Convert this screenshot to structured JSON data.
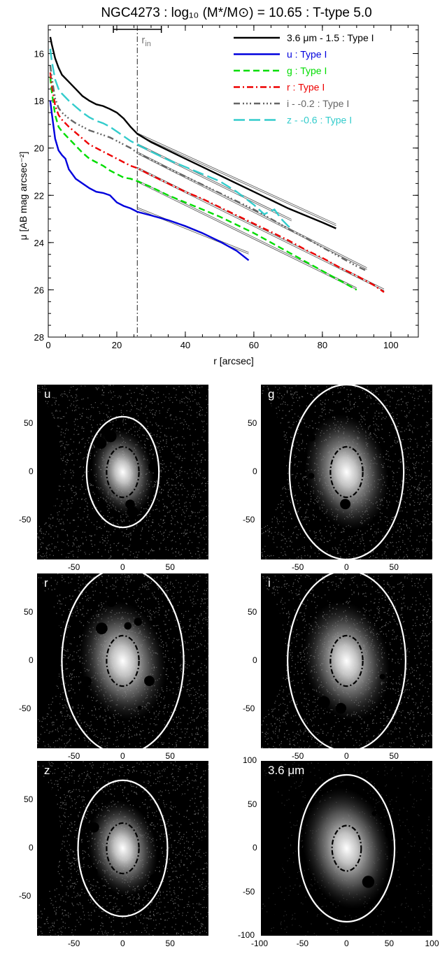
{
  "chart_data": [
    {
      "type": "line",
      "title": "NGC4273 : log₁₀ (M*/M⊙) = 10.65 : T-type 5.0",
      "xlabel": "r [arcsec]",
      "ylabel": "μ [AB mag arcsec⁻²]",
      "xlim": [
        0,
        108
      ],
      "ylim": [
        28,
        14.8
      ],
      "y_inverted": true,
      "xticks": [
        "0",
        "20",
        "40",
        "60",
        "80",
        "100"
      ],
      "yticks": [
        "16",
        "18",
        "20",
        "22",
        "24",
        "26",
        "28"
      ],
      "r_in": 26,
      "r_in_label": "r",
      "r_in_sub": "in",
      "r_in_range": [
        19,
        33
      ],
      "legend_position": "top-right",
      "series": [
        {
          "name": "3.6 μm - 1.5 : Type I",
          "color": "#000000",
          "dash": "",
          "x": [
            0.6,
            1,
            2,
            3,
            4,
            6,
            8,
            10,
            12,
            14,
            16,
            18,
            20,
            22,
            24,
            26,
            30,
            35,
            40,
            45,
            50,
            55,
            60,
            65,
            70,
            75,
            80,
            84
          ],
          "y": [
            15.3,
            15.6,
            16.2,
            16.6,
            16.9,
            17.2,
            17.5,
            17.8,
            18.0,
            18.15,
            18.22,
            18.35,
            18.5,
            18.75,
            19.1,
            19.4,
            19.75,
            20.1,
            20.45,
            20.8,
            21.15,
            21.5,
            21.85,
            22.2,
            22.55,
            22.85,
            23.15,
            23.4
          ],
          "fit": [
            [
              26,
              19.4
            ],
            [
              84,
              23.25
            ]
          ]
        },
        {
          "name": "u : Type I",
          "color": "#0000dd",
          "dash": "",
          "x": [
            0.6,
            1,
            2,
            3,
            4,
            5,
            6,
            8,
            10,
            12,
            14,
            16,
            18,
            20,
            22,
            24,
            26,
            30,
            35,
            40,
            45,
            50,
            55,
            58.5
          ],
          "y": [
            18.0,
            18.5,
            19.6,
            20.1,
            20.3,
            20.45,
            20.9,
            21.3,
            21.5,
            21.7,
            21.85,
            21.9,
            22.0,
            22.3,
            22.45,
            22.55,
            22.7,
            22.85,
            23.05,
            23.3,
            23.6,
            23.95,
            24.35,
            24.75
          ],
          "fit": [
            [
              26,
              22.55
            ],
            [
              58.5,
              24.45
            ]
          ]
        },
        {
          "name": "g : Type I",
          "color": "#00dd00",
          "dash": "9,5",
          "x": [
            0.6,
            1,
            2,
            3,
            4,
            6,
            8,
            10,
            12,
            14,
            16,
            18,
            20,
            22,
            24,
            26,
            30,
            35,
            40,
            45,
            50,
            55,
            60,
            65,
            70,
            75,
            80,
            85,
            90
          ],
          "y": [
            17.0,
            17.6,
            18.6,
            19.1,
            19.3,
            19.6,
            19.9,
            20.2,
            20.45,
            20.6,
            20.75,
            20.95,
            21.1,
            21.25,
            21.3,
            21.4,
            21.65,
            22.0,
            22.3,
            22.6,
            22.9,
            23.25,
            23.6,
            24.0,
            24.4,
            24.8,
            25.2,
            25.6,
            26.0
          ],
          "fit": [
            [
              26,
              21.4
            ],
            [
              90,
              25.95
            ]
          ]
        },
        {
          "name": "r : Type I",
          "color": "#ee0000",
          "dash": "9,4,2,4",
          "x": [
            0.6,
            1,
            2,
            3,
            4,
            6,
            8,
            10,
            12,
            14,
            16,
            18,
            20,
            22,
            24,
            26,
            30,
            35,
            40,
            45,
            50,
            55,
            60,
            65,
            70,
            75,
            80,
            85,
            90,
            95,
            98
          ],
          "y": [
            16.8,
            17.3,
            18.2,
            18.6,
            18.8,
            19.1,
            19.35,
            19.6,
            19.85,
            20.0,
            20.15,
            20.3,
            20.45,
            20.6,
            20.75,
            20.85,
            21.15,
            21.5,
            21.85,
            22.15,
            22.5,
            22.85,
            23.2,
            23.55,
            23.9,
            24.3,
            24.65,
            25.05,
            25.4,
            25.8,
            26.1
          ],
          "fit": [
            [
              26,
              20.85
            ],
            [
              98,
              26.0
            ]
          ]
        },
        {
          "name": "i - -0.2 : Type I",
          "color": "#666666",
          "dash": "9,4,2,3,2,3,2,4",
          "x": [
            0.6,
            1,
            2,
            3,
            4,
            6,
            8,
            10,
            12,
            14,
            16,
            18,
            20,
            22,
            24,
            26,
            30,
            35,
            40,
            45,
            50,
            55,
            60,
            65,
            70,
            75,
            80,
            85,
            90,
            93
          ],
          "y": [
            16.5,
            17.0,
            17.9,
            18.3,
            18.5,
            18.75,
            18.95,
            19.1,
            19.25,
            19.35,
            19.45,
            19.55,
            19.7,
            19.85,
            20.0,
            20.2,
            20.5,
            20.85,
            21.2,
            21.55,
            21.9,
            22.25,
            22.6,
            23.0,
            23.4,
            23.8,
            24.2,
            24.6,
            25.0,
            25.2
          ],
          "fit": [
            [
              26,
              20.2
            ],
            [
              93,
              25.1
            ]
          ]
        },
        {
          "name": "z - -0.6 : Type I",
          "color": "#33cccc",
          "dash": "16,6",
          "x": [
            0.6,
            1,
            2,
            3,
            4,
            6,
            8,
            10,
            12,
            14,
            16,
            18,
            20,
            22,
            24,
            26,
            30,
            35,
            40,
            45,
            50,
            55,
            60,
            63,
            66,
            68,
            70,
            71
          ],
          "y": [
            15.8,
            16.3,
            17.1,
            17.5,
            17.7,
            18.0,
            18.25,
            18.5,
            18.7,
            18.85,
            18.95,
            19.1,
            19.3,
            19.5,
            19.7,
            19.85,
            20.15,
            20.5,
            20.8,
            21.1,
            21.4,
            21.85,
            22.4,
            22.8,
            22.6,
            23.0,
            23.3,
            23.4
          ],
          "fit": [
            [
              26,
              19.85
            ],
            [
              71,
              23.05
            ]
          ]
        }
      ]
    },
    {
      "type": "heatmap",
      "band": "u",
      "xlim": [
        -90,
        90
      ],
      "ylim": [
        -90,
        90
      ],
      "xticks": [
        "-50",
        "0",
        "50"
      ],
      "yticks": [
        "50",
        "0",
        "-50"
      ],
      "outer_ellipse": {
        "a": 38,
        "b": 57
      },
      "inner_ellipse": {
        "a": 17,
        "b": 26
      },
      "galaxy_extent": 45
    },
    {
      "type": "heatmap",
      "band": "g",
      "xlim": [
        -90,
        90
      ],
      "ylim": [
        -90,
        90
      ],
      "xticks": [
        "-50",
        "0",
        "50"
      ],
      "yticks": [
        "50",
        "0",
        "-50"
      ],
      "outer_ellipse": {
        "a": 60,
        "b": 90
      },
      "inner_ellipse": {
        "a": 17,
        "b": 26
      },
      "galaxy_extent": 60
    },
    {
      "type": "heatmap",
      "band": "r",
      "xlim": [
        -90,
        90
      ],
      "ylim": [
        -90,
        90
      ],
      "xticks": [
        "-50",
        "0",
        "50"
      ],
      "yticks": [
        "50",
        "0",
        "-50"
      ],
      "outer_ellipse": {
        "a": 64,
        "b": 96
      },
      "inner_ellipse": {
        "a": 17,
        "b": 26
      },
      "galaxy_extent": 62
    },
    {
      "type": "heatmap",
      "band": "i",
      "xlim": [
        -90,
        90
      ],
      "ylim": [
        -90,
        90
      ],
      "xticks": [
        "-50",
        "0",
        "50"
      ],
      "yticks": [
        "50",
        "0",
        "-50"
      ],
      "outer_ellipse": {
        "a": 62,
        "b": 93
      },
      "inner_ellipse": {
        "a": 17,
        "b": 26
      },
      "galaxy_extent": 62
    },
    {
      "type": "heatmap",
      "band": "z",
      "xlim": [
        -90,
        90
      ],
      "ylim": [
        -90,
        90
      ],
      "xticks": [
        "-50",
        "0",
        "50"
      ],
      "yticks": [
        "50",
        "0",
        "-50"
      ],
      "outer_ellipse": {
        "a": 47,
        "b": 70
      },
      "inner_ellipse": {
        "a": 17,
        "b": 26
      },
      "galaxy_extent": 50
    },
    {
      "type": "heatmap",
      "band": "3.6 μm",
      "xlim": [
        -100,
        100
      ],
      "ylim": [
        -100,
        100
      ],
      "xticks": [
        "-100",
        "-50",
        "0",
        "50",
        "100"
      ],
      "yticks": [
        "100",
        "50",
        "0",
        "-50",
        "-100"
      ],
      "outer_ellipse": {
        "a": 56,
        "b": 84
      },
      "inner_ellipse": {
        "a": 17,
        "b": 26
      },
      "galaxy_extent": 70
    }
  ]
}
